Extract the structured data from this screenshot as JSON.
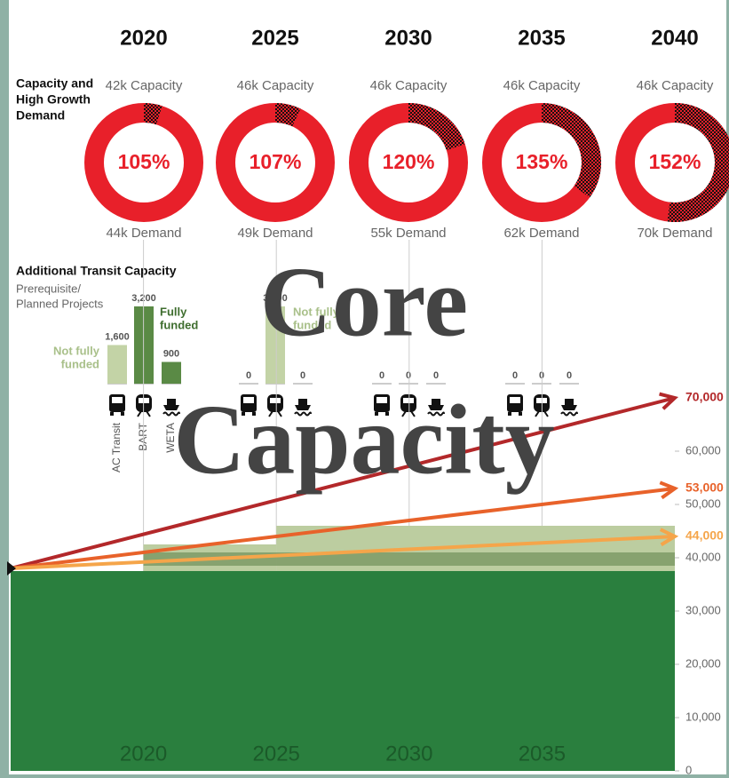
{
  "overlay_lines": [
    "Core",
    "Capacity"
  ],
  "chart_data": [
    {
      "type": "donut",
      "title_lines": [
        "Capacity and",
        "High Growth",
        "Demand"
      ],
      "categories": [
        "2020",
        "2025",
        "2030",
        "2035",
        "2040"
      ],
      "capacity_labels": [
        "42k Capacity",
        "46k Capacity",
        "46k Capacity",
        "46k Capacity",
        "46k Capacity"
      ],
      "demand_labels": [
        "44k Demand",
        "49k Demand",
        "55k Demand",
        "62k Demand",
        "70k Demand"
      ],
      "values": [
        105,
        107,
        120,
        135,
        152
      ],
      "value_labels": [
        "105%",
        "107%",
        "120%",
        "135%",
        "152%"
      ],
      "color": "#e8202a"
    },
    {
      "type": "bar",
      "title": "Additional Transit Capacity",
      "subtitle_lines": [
        "Prerequisite/",
        "Planned Projects"
      ],
      "categories": [
        "AC Transit",
        "BART",
        "WETA"
      ],
      "not_funded_lines": [
        "Not fully",
        "funded"
      ],
      "funded_lines": [
        "Fully",
        "funded"
      ],
      "ylim": [
        0,
        3200
      ],
      "series": [
        {
          "values": [
            1600,
            3200,
            900
          ],
          "value_labels": [
            "1,600",
            "3,200",
            "900"
          ],
          "colors": [
            "#c3d3a6",
            "#5a8a45",
            "#5a8a45"
          ]
        },
        {
          "values": [
            0,
            3200,
            0
          ],
          "value_labels": [
            "0",
            "3,200",
            "0"
          ],
          "colors": [
            "#c3d3a6",
            "#c3d3a6",
            "#c3d3a6"
          ]
        },
        {
          "values": [
            0,
            0,
            0
          ],
          "value_labels": [
            "0",
            "0",
            "0"
          ],
          "colors": [
            "#c3d3a6",
            "#c3d3a6",
            "#c3d3a6"
          ]
        },
        {
          "values": [
            0,
            0,
            0
          ],
          "value_labels": [
            "0",
            "0",
            "0"
          ],
          "colors": [
            "#c3d3a6",
            "#c3d3a6",
            "#c3d3a6"
          ]
        }
      ]
    },
    {
      "type": "line",
      "xlim": [
        2015,
        2040
      ],
      "xticks": [
        2020,
        2025,
        2030,
        2035
      ],
      "ylim": [
        0,
        70000
      ],
      "yticks": [
        0,
        {
          "value": 10000,
          "label": "10,000"
        },
        {
          "value": 20000,
          "label": "20,000"
        },
        {
          "value": 30000,
          "label": "30,000"
        },
        {
          "value": 40000,
          "label": "40,000"
        },
        {
          "value": 50000,
          "label": "50,000"
        },
        {
          "value": 60000,
          "label": "60,000"
        }
      ],
      "areas": [
        {
          "color": "#2a7f3e",
          "x": [
            2015,
            2040
          ],
          "low": [
            0,
            0
          ],
          "high": [
            37500,
            37500
          ]
        },
        {
          "color": "#bccda0",
          "x": [
            2020,
            2025
          ],
          "low": [
            37500,
            37500
          ],
          "high": [
            42500,
            42500
          ]
        },
        {
          "color": "#bccda0",
          "x": [
            2025,
            2040
          ],
          "low": [
            37500,
            37500
          ],
          "high": [
            46000,
            46000
          ]
        },
        {
          "color": "#76935f",
          "x": [
            2020,
            2040
          ],
          "low": [
            38500,
            38500
          ],
          "high": [
            41000,
            41000
          ]
        }
      ],
      "series": [
        {
          "color": "#b3282a",
          "x": [
            2015,
            2040
          ],
          "values": [
            38000,
            70000
          ],
          "value_labels": [
            null,
            "70,000"
          ]
        },
        {
          "color": "#e8622a",
          "x": [
            2015,
            2040
          ],
          "values": [
            38000,
            53000
          ],
          "value_labels": [
            null,
            "53,000"
          ]
        },
        {
          "color": "#f5a54a",
          "x": [
            2015,
            2040
          ],
          "values": [
            38000,
            44000
          ],
          "value_labels": [
            null,
            "44,000"
          ]
        }
      ]
    }
  ]
}
